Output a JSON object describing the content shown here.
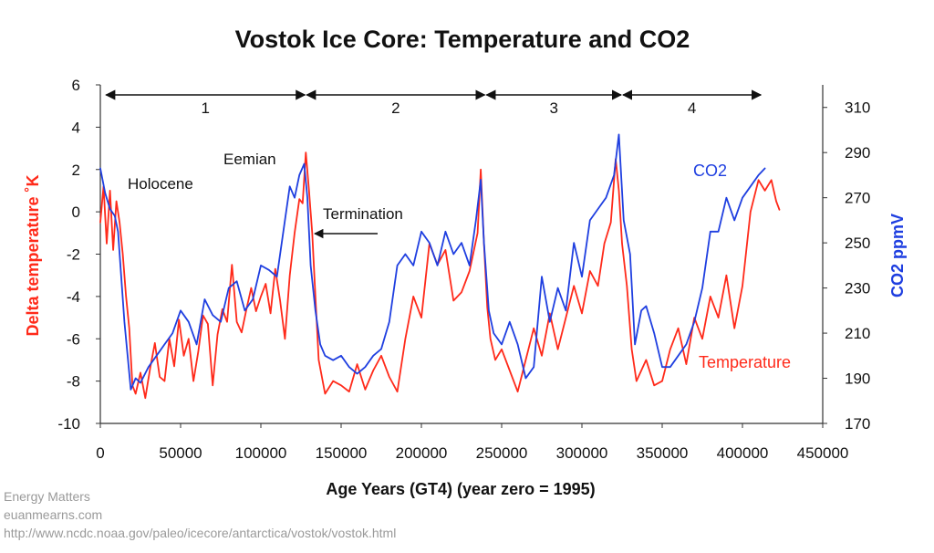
{
  "chart_data": {
    "type": "line",
    "title": "Vostok Ice Core: Temperature and CO2",
    "xlabel": "Age Years (GT4) (year zero = 1995)",
    "ylabel_left": "Delta temperature ˚K",
    "ylabel_right": "CO2 ppmV",
    "xlim": [
      0,
      450000
    ],
    "ylim_left": [
      -10,
      6
    ],
    "ylim_right": [
      170,
      320
    ],
    "x_ticks": [
      0,
      50000,
      100000,
      150000,
      200000,
      250000,
      300000,
      350000,
      400000,
      450000
    ],
    "x_tick_labels": [
      "0",
      "50000",
      "100000",
      "150000",
      "200000",
      "250000",
      "300000",
      "350000",
      "400000",
      "450000"
    ],
    "y_left_ticks": [
      -10,
      -8,
      -6,
      -4,
      -2,
      0,
      2,
      4,
      6
    ],
    "y_left_tick_labels": [
      "-10",
      "-8",
      "-6",
      "-4",
      "-2",
      "0",
      "2",
      "4",
      "6"
    ],
    "y_right_ticks": [
      170,
      190,
      210,
      230,
      250,
      270,
      290,
      310
    ],
    "y_right_tick_labels": [
      "170",
      "190",
      "210",
      "230",
      "250",
      "270",
      "290",
      "310"
    ],
    "colors": {
      "temperature": "#ff2a1a",
      "co2": "#1f3fe0",
      "axis": "#333333"
    },
    "grid": false,
    "series": [
      {
        "name": "Temperature",
        "axis": "left",
        "x": [
          0,
          2000,
          4000,
          6000,
          8000,
          10000,
          12000,
          14000,
          16000,
          18000,
          20000,
          22000,
          25000,
          28000,
          31000,
          34000,
          37000,
          40000,
          43000,
          46000,
          49000,
          52000,
          55000,
          58000,
          61000,
          64000,
          67000,
          70000,
          73000,
          76000,
          79000,
          82000,
          85000,
          88000,
          91000,
          94000,
          97000,
          100000,
          103000,
          106000,
          109000,
          112000,
          115000,
          118000,
          121000,
          124000,
          126000,
          128000,
          130000,
          132000,
          134000,
          136000,
          138000,
          140000,
          145000,
          150000,
          155000,
          160000,
          165000,
          170000,
          175000,
          180000,
          185000,
          190000,
          195000,
          200000,
          205000,
          210000,
          215000,
          220000,
          225000,
          230000,
          235000,
          237000,
          239000,
          241000,
          243000,
          246000,
          250000,
          255000,
          260000,
          265000,
          270000,
          275000,
          280000,
          285000,
          290000,
          295000,
          300000,
          305000,
          310000,
          314000,
          318000,
          321000,
          323000,
          325000,
          328000,
          331000,
          334000,
          337000,
          340000,
          345000,
          350000,
          355000,
          360000,
          365000,
          370000,
          375000,
          380000,
          385000,
          390000,
          395000,
          400000,
          405000,
          410000,
          414000,
          418000,
          421000,
          423000
        ],
        "values": [
          -0.5,
          1.2,
          -1.5,
          1.0,
          -1.8,
          0.5,
          -0.5,
          -2.0,
          -4.0,
          -5.5,
          -8.2,
          -8.6,
          -7.6,
          -8.8,
          -7.4,
          -6.2,
          -7.8,
          -8.0,
          -6.0,
          -7.3,
          -5.1,
          -6.8,
          -6.0,
          -8.0,
          -6.6,
          -4.9,
          -5.3,
          -8.2,
          -5.8,
          -4.6,
          -5.2,
          -2.5,
          -5.2,
          -5.7,
          -4.6,
          -3.6,
          -4.7,
          -4.0,
          -3.4,
          -4.8,
          -2.7,
          -4.2,
          -6.0,
          -3.0,
          -1.0,
          0.6,
          0.4,
          2.8,
          1.0,
          -1.0,
          -4.0,
          -7.0,
          -7.8,
          -8.6,
          -8.0,
          -8.2,
          -8.5,
          -7.2,
          -8.4,
          -7.5,
          -6.8,
          -7.8,
          -8.5,
          -6.0,
          -4.0,
          -5.0,
          -1.5,
          -2.5,
          -1.8,
          -4.2,
          -3.8,
          -2.8,
          -1.0,
          2.0,
          -1.5,
          -4.5,
          -6.0,
          -7.0,
          -6.5,
          -7.5,
          -8.5,
          -7.0,
          -5.5,
          -6.8,
          -4.8,
          -6.5,
          -5.0,
          -3.5,
          -4.8,
          -2.8,
          -3.5,
          -1.5,
          -0.5,
          2.5,
          1.0,
          -1.5,
          -3.5,
          -6.5,
          -8.0,
          -7.5,
          -7.0,
          -8.2,
          -8.0,
          -6.5,
          -5.5,
          -7.2,
          -5.0,
          -6.0,
          -4.0,
          -5.0,
          -3.0,
          -5.5,
          -3.5,
          0.0,
          1.5,
          1.0,
          1.5,
          0.5,
          0.1
        ]
      },
      {
        "name": "CO2",
        "axis": "right",
        "x": [
          0,
          3000,
          6000,
          9000,
          11000,
          13000,
          15000,
          17000,
          19000,
          22000,
          25000,
          30000,
          35000,
          40000,
          45000,
          50000,
          55000,
          60000,
          65000,
          70000,
          75000,
          80000,
          85000,
          90000,
          95000,
          100000,
          105000,
          110000,
          115000,
          118000,
          121000,
          124000,
          127000,
          129000,
          131000,
          134000,
          137000,
          140000,
          145000,
          150000,
          155000,
          160000,
          165000,
          170000,
          175000,
          180000,
          185000,
          190000,
          195000,
          200000,
          205000,
          210000,
          215000,
          220000,
          225000,
          230000,
          234000,
          237000,
          239000,
          242000,
          245000,
          250000,
          255000,
          260000,
          265000,
          270000,
          275000,
          280000,
          285000,
          290000,
          295000,
          300000,
          305000,
          310000,
          315000,
          320000,
          323000,
          326000,
          330000,
          333000,
          337000,
          340000,
          345000,
          350000,
          355000,
          360000,
          365000,
          370000,
          375000,
          380000,
          385000,
          390000,
          395000,
          400000,
          405000,
          410000,
          414000
        ],
        "values": [
          283,
          272,
          265,
          262,
          255,
          235,
          215,
          200,
          185,
          190,
          188,
          195,
          200,
          205,
          210,
          220,
          215,
          205,
          225,
          218,
          215,
          230,
          233,
          220,
          225,
          240,
          238,
          235,
          260,
          275,
          270,
          280,
          285,
          270,
          240,
          220,
          205,
          200,
          198,
          200,
          195,
          192,
          195,
          200,
          203,
          215,
          240,
          245,
          240,
          255,
          250,
          240,
          255,
          245,
          250,
          240,
          260,
          278,
          250,
          220,
          210,
          205,
          215,
          205,
          190,
          195,
          235,
          215,
          230,
          220,
          250,
          235,
          260,
          265,
          270,
          280,
          298,
          260,
          245,
          205,
          220,
          222,
          210,
          195,
          195,
          200,
          205,
          215,
          230,
          255,
          255,
          270,
          260,
          270,
          275,
          280,
          283
        ]
      }
    ],
    "period_arrows": [
      {
        "label": "1",
        "from": 3000,
        "to": 128000
      },
      {
        "label": "2",
        "from": 128000,
        "to": 240000
      },
      {
        "label": "3",
        "from": 240000,
        "to": 325000
      },
      {
        "label": "4",
        "from": 325000,
        "to": 412000
      }
    ],
    "annotations": {
      "holocene": "Holocene",
      "eemian": "Eemian",
      "termination": "Termination",
      "co2_label": "CO2",
      "temperature_label": "Temperature"
    }
  },
  "footer": {
    "line1": "Energy Matters",
    "line2": "euanmearns.com",
    "line3": "http://www.ncdc.noaa.gov/paleo/icecore/antarctica/vostok/vostok.html"
  }
}
